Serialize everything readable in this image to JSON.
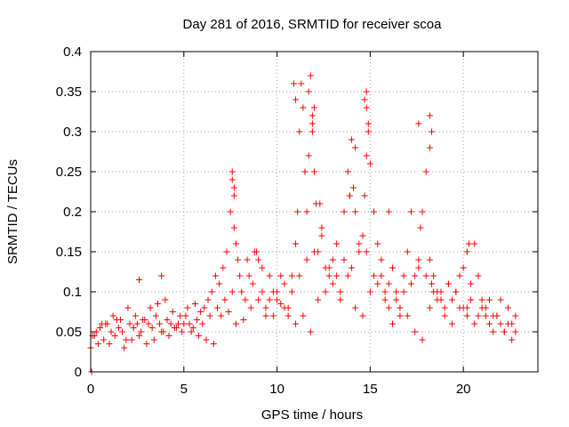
{
  "chart_data": {
    "type": "scatter",
    "title": "Day 281 of 2016, SRMTID for receiver scoa",
    "xlabel": "GPS time / hours",
    "ylabel": "SRMTID / TECUs",
    "xlim": [
      0,
      24
    ],
    "ylim": [
      0,
      0.4
    ],
    "xticks": [
      0,
      5,
      10,
      15,
      20
    ],
    "yticks": [
      0,
      0.05,
      0.1,
      0.15,
      0.2,
      0.25,
      0.3,
      0.35,
      0.4
    ],
    "xtick_labels": [
      "0",
      "5",
      "10",
      "15",
      "20"
    ],
    "ytick_labels": [
      "0",
      "0.05",
      "0.1",
      "0.15",
      "0.2",
      "0.25",
      "0.3",
      "0.35",
      "0.4"
    ],
    "grid": true,
    "marker": "+",
    "color": "#ff0000",
    "series": [
      {
        "name": "SRMTID",
        "x": [
          0.1,
          0.3,
          0.5,
          0.7,
          0.9,
          1.1,
          1.3,
          1.5,
          1.7,
          1.9,
          2.1,
          2.3,
          2.5,
          2.7,
          2.9,
          3.1,
          3.3,
          3.5,
          3.7,
          3.9,
          4.1,
          4.3,
          4.5,
          4.7,
          4.9,
          5.1,
          5.3,
          5.5,
          5.7,
          5.9,
          6.1,
          6.3,
          6.5,
          6.7,
          6.9,
          7.1,
          7.3,
          7.5,
          7.6,
          7.7,
          7.8,
          7.9,
          8.1,
          8.3,
          8.5,
          8.7,
          8.9,
          9.0,
          9.2,
          9.4,
          9.6,
          9.8,
          10.0,
          10.2,
          10.4,
          10.6,
          10.8,
          11.0,
          11.1,
          11.2,
          11.3,
          11.4,
          11.5,
          11.6,
          11.7,
          11.8,
          11.9,
          12.0,
          12.1,
          12.2,
          12.4,
          12.6,
          12.8,
          13.0,
          13.2,
          13.4,
          13.6,
          13.8,
          13.9,
          14.0,
          14.1,
          14.2,
          14.4,
          14.6,
          14.7,
          14.8,
          14.9,
          15.0,
          15.2,
          15.4,
          15.6,
          15.8,
          16.0,
          16.2,
          16.4,
          16.6,
          16.8,
          17.0,
          17.2,
          17.4,
          17.6,
          17.7,
          17.8,
          18.0,
          18.2,
          18.3,
          18.4,
          18.6,
          18.8,
          19.0,
          19.2,
          19.4,
          19.6,
          19.8,
          20.0,
          20.2,
          20.4,
          20.6,
          20.8,
          21.0,
          21.2,
          21.4,
          21.6,
          21.8,
          22.0,
          22.2,
          22.4,
          22.6,
          22.8,
          0.2,
          0.6,
          1.0,
          1.4,
          1.8,
          2.2,
          2.6,
          3.0,
          3.4,
          3.8,
          4.2,
          4.6,
          5.0,
          5.4,
          5.8,
          6.2,
          6.6,
          7.0,
          7.4,
          7.8,
          8.2,
          8.6,
          9.0,
          9.4,
          9.8,
          10.2,
          10.6,
          11.0,
          11.4,
          11.8,
          12.2,
          12.6,
          13.0,
          13.4,
          13.8,
          14.2,
          14.6,
          15.0,
          15.4,
          15.8,
          16.2,
          16.6,
          17.0,
          17.4,
          17.8,
          18.2,
          18.6,
          19.0,
          19.4,
          19.8,
          20.2,
          20.6,
          21.0,
          21.4,
          21.8,
          22.2,
          22.6,
          0.0,
          0.4,
          0.8,
          1.2,
          1.6,
          2.0,
          2.4,
          2.8,
          3.2,
          3.6,
          4.0,
          4.4,
          4.8,
          5.2,
          5.6,
          6.0,
          6.4,
          6.8,
          7.2,
          7.6,
          8.0,
          8.4,
          8.8,
          9.2,
          9.6,
          10.0,
          10.4,
          10.8,
          11.2,
          11.6,
          12.0,
          12.4,
          12.8,
          13.2,
          13.6,
          14.0,
          14.4,
          14.8,
          15.2,
          15.6,
          16.0,
          16.4,
          16.8,
          17.2,
          17.6,
          18.0,
          18.4,
          18.8,
          19.2,
          19.6,
          20.0,
          20.4,
          20.8,
          21.2,
          21.6,
          22.0,
          22.4,
          22.8,
          10.9,
          11.0,
          11.9,
          12.0,
          11.7,
          11.9,
          14.7,
          14.8,
          14.9,
          14.8,
          17.6,
          18.2,
          18.3,
          18.2,
          7.6,
          7.7,
          7.7,
          20.3,
          20.2,
          12.3,
          13.9,
          14.2,
          16.0,
          3.8,
          2.6,
          0.05
        ],
        "y": [
          0.045,
          0.05,
          0.055,
          0.04,
          0.06,
          0.05,
          0.045,
          0.055,
          0.05,
          0.04,
          0.06,
          0.055,
          0.06,
          0.05,
          0.065,
          0.06,
          0.055,
          0.07,
          0.06,
          0.05,
          0.065,
          0.06,
          0.055,
          0.06,
          0.05,
          0.07,
          0.06,
          0.055,
          0.065,
          0.075,
          0.08,
          0.09,
          0.1,
          0.12,
          0.11,
          0.13,
          0.15,
          0.2,
          0.25,
          0.18,
          0.16,
          0.14,
          0.1,
          0.09,
          0.12,
          0.11,
          0.15,
          0.14,
          0.1,
          0.08,
          0.09,
          0.07,
          0.1,
          0.085,
          0.08,
          0.07,
          0.12,
          0.16,
          0.2,
          0.3,
          0.36,
          0.33,
          0.25,
          0.2,
          0.27,
          0.37,
          0.31,
          0.25,
          0.21,
          0.15,
          0.18,
          0.13,
          0.12,
          0.14,
          0.16,
          0.1,
          0.2,
          0.25,
          0.22,
          0.29,
          0.23,
          0.2,
          0.15,
          0.17,
          0.22,
          0.35,
          0.3,
          0.26,
          0.2,
          0.16,
          0.12,
          0.1,
          0.08,
          0.06,
          0.09,
          0.07,
          0.1,
          0.15,
          0.2,
          0.12,
          0.14,
          0.18,
          0.2,
          0.25,
          0.14,
          0.11,
          0.12,
          0.09,
          0.1,
          0.08,
          0.11,
          0.09,
          0.1,
          0.12,
          0.13,
          0.08,
          0.11,
          0.16,
          0.12,
          0.09,
          0.07,
          0.06,
          0.05,
          0.07,
          0.06,
          0.05,
          0.08,
          0.06,
          0.05,
          0.045,
          0.06,
          0.035,
          0.065,
          0.03,
          0.04,
          0.045,
          0.035,
          0.04,
          0.05,
          0.045,
          0.055,
          0.06,
          0.05,
          0.045,
          0.04,
          0.035,
          0.07,
          0.075,
          0.06,
          0.065,
          0.08,
          0.09,
          0.07,
          0.1,
          0.12,
          0.08,
          0.06,
          0.07,
          0.05,
          0.09,
          0.1,
          0.11,
          0.09,
          0.12,
          0.08,
          0.07,
          0.1,
          0.11,
          0.09,
          0.13,
          0.08,
          0.07,
          0.05,
          0.04,
          0.08,
          0.1,
          0.07,
          0.06,
          0.08,
          0.07,
          0.06,
          0.08,
          0.09,
          0.07,
          0.05,
          0.04,
          0.03,
          0.035,
          0.06,
          0.07,
          0.065,
          0.08,
          0.07,
          0.065,
          0.08,
          0.085,
          0.09,
          0.075,
          0.07,
          0.08,
          0.085,
          0.06,
          0.07,
          0.08,
          0.09,
          0.1,
          0.12,
          0.14,
          0.15,
          0.13,
          0.12,
          0.09,
          0.11,
          0.1,
          0.12,
          0.14,
          0.15,
          0.17,
          0.13,
          0.12,
          0.14,
          0.13,
          0.16,
          0.15,
          0.12,
          0.14,
          0.11,
          0.1,
          0.12,
          0.11,
          0.13,
          0.12,
          0.1,
          0.09,
          0.11,
          0.1,
          0.08,
          0.09,
          0.07,
          0.08,
          0.07,
          0.09,
          0.06,
          0.07,
          0.36,
          0.34,
          0.32,
          0.33,
          0.35,
          0.3,
          0.34,
          0.33,
          0.31,
          0.27,
          0.31,
          0.32,
          0.3,
          0.28,
          0.24,
          0.23,
          0.22,
          0.16,
          0.15,
          0.21,
          0.22,
          0.28,
          0.2,
          0.12,
          0.115,
          0.0
        ]
      }
    ]
  }
}
